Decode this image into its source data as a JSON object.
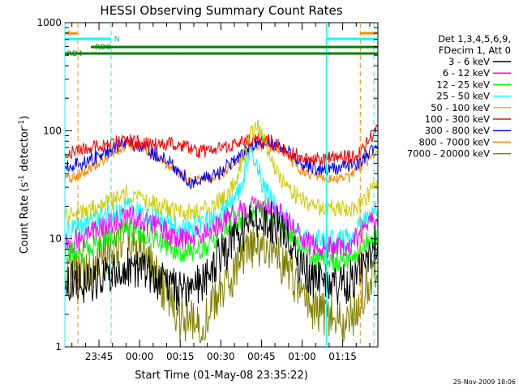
{
  "chart_data": {
    "type": "line",
    "title": "HESSI Observing Summary Count Rates",
    "xlabel": "Start Time (01-May-08 23:35:22)",
    "ylabel_main": "Count Rate (s",
    "ylabel_sup1": "-1",
    "ylabel_mid": " detector",
    "ylabel_sup2": "-1",
    "ylabel_end": ")",
    "y_scale": "log",
    "ylim": [
      1,
      1000
    ],
    "xlim_minutes": [
      -12.6,
      103.0
    ],
    "x_tick_labels": [
      "23:45",
      "00:00",
      "00:15",
      "00:30",
      "00:45",
      "01:00",
      "01:15"
    ],
    "x_tick_minutes": [
      0,
      15,
      30,
      45,
      60,
      75,
      90
    ],
    "y_tick_labels": [
      "1",
      "10",
      "100",
      "1000"
    ],
    "y_tick_values": [
      1,
      10,
      100,
      1000
    ],
    "legend": {
      "header1": "Det 1,3,4,5,6,9,",
      "header2": "FDecim 1, Att 0",
      "placement": "right"
    },
    "series": [
      {
        "name": "3 - 6 keV",
        "color": "#000000",
        "noise": 0.45,
        "knots": [
          [
            -12.6,
            4.2
          ],
          [
            -6,
            3.8
          ],
          [
            2,
            4.6
          ],
          [
            12,
            5.6
          ],
          [
            20,
            4.4
          ],
          [
            30,
            3.2
          ],
          [
            38,
            4.0
          ],
          [
            45,
            7
          ],
          [
            52,
            11
          ],
          [
            58,
            15.5
          ],
          [
            62,
            15
          ],
          [
            68,
            12
          ],
          [
            75,
            5
          ],
          [
            82,
            3.8
          ],
          [
            92,
            3.8
          ],
          [
            103,
            10
          ]
        ]
      },
      {
        "name": "6 - 12 keV",
        "color": "#ff00ff",
        "noise": 0.25,
        "knots": [
          [
            -12.6,
            9.2
          ],
          [
            -6,
            10
          ],
          [
            2,
            13
          ],
          [
            10,
            16.5
          ],
          [
            18,
            14
          ],
          [
            30,
            10
          ],
          [
            38,
            10.5
          ],
          [
            45,
            14
          ],
          [
            52,
            18
          ],
          [
            58,
            20.5
          ],
          [
            62,
            20
          ],
          [
            68,
            16
          ],
          [
            75,
            10
          ],
          [
            82,
            8.2
          ],
          [
            92,
            8.5
          ],
          [
            103,
            16
          ]
        ]
      },
      {
        "name": "12 - 25 keV",
        "color": "#00ff00",
        "noise": 0.25,
        "knots": [
          [
            -12.6,
            7.6
          ],
          [
            -6,
            7.6
          ],
          [
            2,
            10
          ],
          [
            10,
            12.6
          ],
          [
            18,
            11
          ],
          [
            30,
            7.6
          ],
          [
            38,
            8
          ],
          [
            45,
            11.5
          ],
          [
            52,
            15.5
          ],
          [
            58,
            19
          ],
          [
            62,
            18
          ],
          [
            68,
            13.5
          ],
          [
            75,
            7.6
          ],
          [
            82,
            6.2
          ],
          [
            92,
            6.5
          ],
          [
            103,
            11
          ]
        ]
      },
      {
        "name": "25 - 50 keV",
        "color": "#00ffff",
        "noise": 0.25,
        "knots": [
          [
            -12.6,
            12
          ],
          [
            -6,
            12.5
          ],
          [
            2,
            16
          ],
          [
            10,
            19
          ],
          [
            18,
            16.5
          ],
          [
            30,
            12.5
          ],
          [
            38,
            13
          ],
          [
            45,
            17
          ],
          [
            50,
            22
          ],
          [
            53,
            35
          ],
          [
            55,
            55
          ],
          [
            58,
            58
          ],
          [
            60,
            35
          ],
          [
            64,
            22
          ],
          [
            70,
            14
          ],
          [
            75,
            10
          ],
          [
            82,
            9.5
          ],
          [
            92,
            10
          ],
          [
            103,
            20
          ]
        ]
      },
      {
        "name": "50 - 100 keV",
        "color": "#cccc00",
        "noise": 0.2,
        "knots": [
          [
            -12.6,
            16
          ],
          [
            -6,
            17
          ],
          [
            2,
            21
          ],
          [
            10,
            25.5
          ],
          [
            18,
            22
          ],
          [
            30,
            17
          ],
          [
            38,
            18
          ],
          [
            45,
            23
          ],
          [
            50,
            32
          ],
          [
            55,
            78
          ],
          [
            58,
            118
          ],
          [
            61,
            80
          ],
          [
            66,
            40
          ],
          [
            72,
            26
          ],
          [
            78,
            20
          ],
          [
            85,
            19
          ],
          [
            95,
            19
          ],
          [
            103,
            32
          ]
        ]
      },
      {
        "name": "100 - 300 keV",
        "color": "#ff0000",
        "noise": 0.15,
        "knots": [
          [
            -12.6,
            62
          ],
          [
            -6,
            68
          ],
          [
            2,
            74
          ],
          [
            10,
            82
          ],
          [
            16,
            76
          ],
          [
            26,
            75
          ],
          [
            32,
            72
          ],
          [
            36,
            63
          ],
          [
            44,
            68
          ],
          [
            52,
            77
          ],
          [
            58,
            84
          ],
          [
            64,
            80
          ],
          [
            70,
            62
          ],
          [
            78,
            55
          ],
          [
            86,
            56
          ],
          [
            95,
            58
          ],
          [
            103,
            105
          ]
        ]
      },
      {
        "name": "300 - 800 keV",
        "color": "#0000ff",
        "noise": 0.15,
        "knots": [
          [
            -12.6,
            46
          ],
          [
            -6,
            50
          ],
          [
            2,
            63
          ],
          [
            10,
            78
          ],
          [
            16,
            70
          ],
          [
            26,
            52
          ],
          [
            34,
            33
          ],
          [
            44,
            40
          ],
          [
            52,
            60
          ],
          [
            58,
            76
          ],
          [
            62,
            78
          ],
          [
            68,
            70
          ],
          [
            75,
            50
          ],
          [
            82,
            44
          ],
          [
            90,
            45
          ],
          [
            96,
            50
          ],
          [
            103,
            76
          ]
        ]
      },
      {
        "name": "800 - 7000 keV",
        "color": "#ff8800",
        "noise": 0.12,
        "knots": [
          [
            -12.6,
            36
          ],
          [
            -6,
            40
          ],
          [
            2,
            55
          ],
          [
            10,
            75
          ],
          [
            16,
            70
          ],
          [
            26,
            48
          ],
          [
            34,
            33
          ],
          [
            44,
            38
          ],
          [
            52,
            55
          ],
          [
            58,
            72
          ],
          [
            62,
            74
          ],
          [
            68,
            62
          ],
          [
            75,
            42
          ],
          [
            82,
            36
          ],
          [
            92,
            36
          ],
          [
            103,
            66
          ]
        ]
      },
      {
        "name": "7000 - 20000 keV",
        "color": "#808000",
        "noise": 0.5,
        "knots": [
          [
            -12.6,
            4.5
          ],
          [
            -6,
            5
          ],
          [
            2,
            7.5
          ],
          [
            10,
            9.5
          ],
          [
            16,
            8
          ],
          [
            24,
            3.5
          ],
          [
            30,
            1.8
          ],
          [
            38,
            1.6
          ],
          [
            44,
            3
          ],
          [
            52,
            6
          ],
          [
            58,
            8.5
          ],
          [
            62,
            8.5
          ],
          [
            68,
            6
          ],
          [
            75,
            3
          ],
          [
            82,
            2
          ],
          [
            92,
            1.6
          ],
          [
            103,
            6
          ]
        ]
      }
    ],
    "attenuator": {
      "label": "S",
      "color": "#ff8800",
      "bars": [
        [
          -12.6,
          -8
        ],
        [
          96.5,
          103
        ]
      ],
      "dashed_lines": [
        -7.8,
        96.5
      ]
    },
    "night": {
      "label": "N",
      "color": "#00ffff",
      "bars": [
        [
          -12.6,
          4.5
        ],
        [
          84,
          103
        ]
      ],
      "dashed_lines": [
        4.5,
        101.5
      ],
      "solid_lines": [
        -12.6,
        84
      ]
    },
    "rdo": {
      "label": "RDO",
      "color": "#008000",
      "bars": [
        [
          -3,
          103
        ]
      ]
    },
    "rd4": {
      "label": "RD4",
      "color": "#008000",
      "bars": [
        [
          -12.6,
          -3.5
        ],
        [
          -3.5,
          13
        ],
        [
          13,
          31
        ],
        [
          31,
          54
        ],
        [
          54,
          75
        ],
        [
          75,
          82
        ],
        [
          82,
          103
        ]
      ]
    },
    "footer_date": "25-Nov-2009 18:06"
  }
}
